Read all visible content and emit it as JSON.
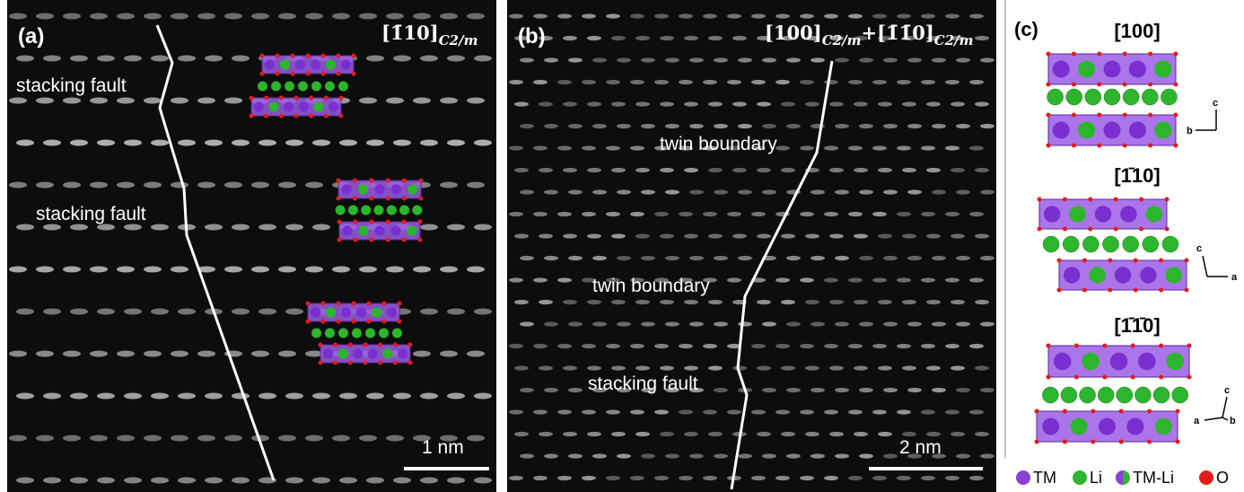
{
  "panels": [
    {
      "label": "(a)",
      "zone_axis": {
        "direction": "[1̄10]",
        "subscript": "C2/m"
      },
      "annotations": [
        "stacking fault",
        "stacking fault"
      ],
      "scale_bar": "1 nm"
    },
    {
      "label": "(b)",
      "zone_axis": {
        "parts": [
          {
            "direction": "[100]",
            "subscript": "C2/m"
          },
          {
            "direction": "[1̄1̄0]",
            "subscript": "C2/m"
          }
        ],
        "joiner": "+"
      },
      "annotations": [
        "twin boundary",
        "twin boundary",
        "stacking fault"
      ],
      "scale_bar": "2 nm"
    },
    {
      "label": "(c)",
      "views": [
        {
          "direction": "[100]",
          "axes": [
            "c",
            "b"
          ]
        },
        {
          "direction": "[1̄10]",
          "axes": [
            "c",
            "a"
          ]
        },
        {
          "direction": "[1̄1̄0]",
          "axes": [
            "c",
            "a",
            "b"
          ]
        }
      ]
    }
  ],
  "legend": [
    "TM",
    "Li",
    "TM-Li",
    "O"
  ]
}
